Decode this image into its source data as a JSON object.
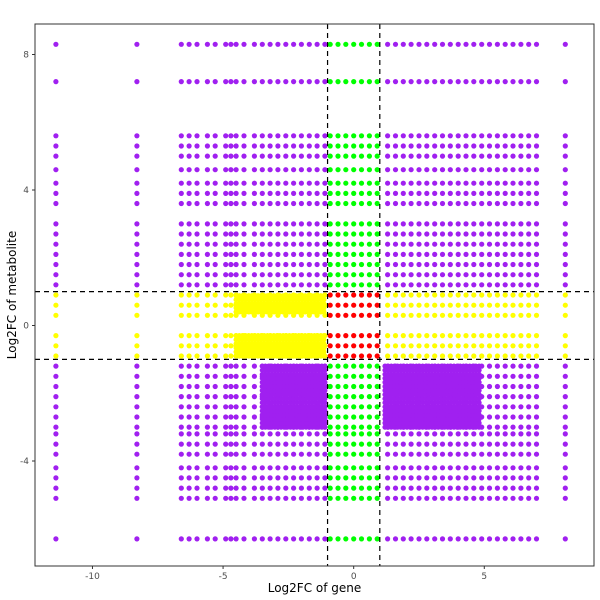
{
  "chart_data": {
    "type": "scatter",
    "title": "",
    "xlabel": "Log2FC of gene",
    "ylabel": "Log2FC of metabolite",
    "xlim": [
      -12.2,
      9.2
    ],
    "ylim": [
      -7.1,
      8.9
    ],
    "xticks": [
      -10,
      -5,
      0,
      5
    ],
    "yticks": [
      -4,
      0,
      4,
      8
    ],
    "tick_labels_x": [
      "-10",
      "-5",
      "0",
      "5"
    ],
    "tick_labels_y": [
      "-4",
      "0",
      "4",
      "8"
    ],
    "grid": false,
    "legend": "none",
    "thresholds": {
      "x": [
        -1,
        1
      ],
      "y": [
        -1,
        1
      ]
    },
    "point_color_rule": {
      "both_significant": "purple (|x|>1 and |y|>1)",
      "gene_only": "yellow (|x|>1, |y|<=1)",
      "metabolite_only": "green (|x|<=1, |y|>1)",
      "neither": "red (|x|<=1, |y|<=1)"
    },
    "colors": {
      "purple": "#A020F0",
      "yellow": "#FFFF00",
      "green": "#00FF00",
      "red": "#FF0000",
      "threshold_line": "#000000",
      "panel_border": "#333333"
    },
    "gene_log2fc_values": [
      -11.4,
      -8.3,
      -6.6,
      -6.3,
      -6.0,
      -5.6,
      -5.3,
      -4.9,
      -4.7,
      -4.5,
      -4.2,
      -3.8,
      -3.5,
      -3.2,
      -2.9,
      -2.6,
      -2.3,
      -2.0,
      -1.7,
      -1.4,
      -1.1,
      -0.9,
      -0.6,
      -0.3,
      0.0,
      0.3,
      0.6,
      0.9,
      1.3,
      1.6,
      1.9,
      2.2,
      2.5,
      2.8,
      3.1,
      3.4,
      3.7,
      4.0,
      4.3,
      4.6,
      4.9,
      5.2,
      5.5,
      5.8,
      6.1,
      6.4,
      6.7,
      7.0,
      8.1
    ],
    "metabolite_log2fc_rows": [
      8.3,
      7.2,
      5.6,
      5.3,
      5.0,
      4.6,
      4.2,
      3.9,
      3.6,
      3.0,
      2.7,
      2.4,
      2.1,
      1.8,
      1.5,
      1.2,
      0.9,
      0.6,
      0.3,
      -0.3,
      -0.6,
      -0.9,
      -1.2,
      -1.5,
      -1.8,
      -2.1,
      -2.4,
      -2.7,
      -3.0,
      -3.2,
      -3.5,
      -3.8,
      -4.2,
      -4.5,
      -4.8,
      -5.1,
      -6.3
    ],
    "dense_bands": [
      {
        "y_range": [
          -3.0,
          -1.2
        ],
        "x_range": [
          -3.5,
          -1.1
        ],
        "color": "purple"
      },
      {
        "y_range": [
          -3.0,
          -1.2
        ],
        "x_range": [
          1.2,
          4.8
        ],
        "color": "purple"
      },
      {
        "y_range": [
          0.4,
          0.9
        ],
        "x_range": [
          -4.5,
          -1.1
        ],
        "color": "yellow"
      },
      {
        "y_range": [
          -0.9,
          -0.3
        ],
        "x_range": [
          -4.5,
          -1.1
        ],
        "color": "yellow"
      }
    ]
  }
}
